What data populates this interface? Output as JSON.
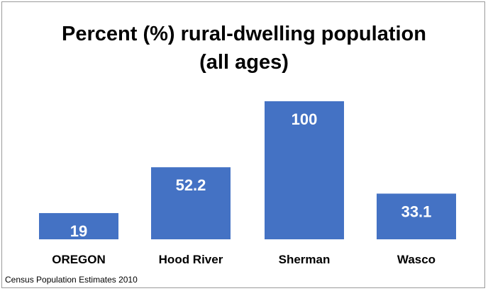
{
  "chart_data": {
    "type": "bar",
    "title_lines": [
      "Percent (%) rural-dwelling population",
      "(all ages)"
    ],
    "categories": [
      "OREGON",
      "Hood River",
      "Sherman",
      "Wasco"
    ],
    "values": [
      19,
      52.2,
      100,
      33.1
    ],
    "value_labels": [
      "19",
      "52.2",
      "100",
      "33.1"
    ],
    "bar_color": "#4472C4",
    "value_label_color": "#ffffff",
    "ylim": [
      0,
      100
    ],
    "grid": false,
    "legend": "none",
    "source": "Census Population Estimates 2010"
  }
}
